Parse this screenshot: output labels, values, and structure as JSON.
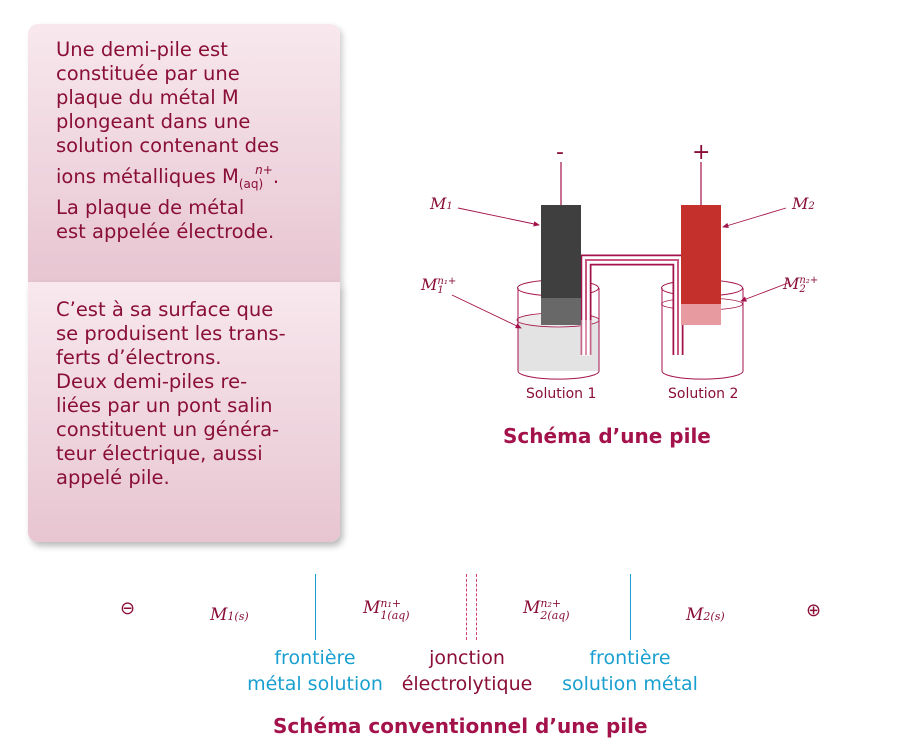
{
  "card_top": {
    "lines": [
      "Une demi-pile est",
      "constituée par une",
      "plaque du métal M",
      "plongeant dans une",
      "solution contenant des"
    ],
    "ions_prefix": "ions métalliques M",
    "ions_sup": "n+",
    "ions_sub": "(aq)",
    "ions_suffix": ".",
    "lines_after": [
      "La plaque de métal",
      "est appelée électrode."
    ]
  },
  "card_bottom": {
    "lines": [
      "C’est à sa surface que",
      "se produisent les trans-",
      "ferts d’électrons.",
      "Deux demi-piles re-",
      "liées par un pont salin",
      "constituent un généra-",
      "teur électrique, aussi",
      "appelé pile."
    ]
  },
  "cell_diagram": {
    "caption": "Schéma d’une pile",
    "minus_sign": "-",
    "plus_sign": "+",
    "m1": "M",
    "m1_sub": "1",
    "m2": "M",
    "m2_sub": "2",
    "ion1": "M",
    "ion1_sub": "1",
    "ion1_sup": "n₁+",
    "ion2": "M",
    "ion2_sub": "2",
    "ion2_sup": "n₂+",
    "solution1": "Solution 1",
    "solution2": "Solution 2",
    "colors": {
      "electrode1": "#3f3f3f",
      "electrode2": "#c4302b",
      "accent": "#a3124a"
    }
  },
  "conventional": {
    "caption": "Schéma conventionnel d’une pile",
    "minus": "⊖",
    "plus": "⊕",
    "m1": "M",
    "m1_sub": "1(s)",
    "ion1": "M",
    "ion1_sup": "n₁+",
    "ion1_sub": "1(aq)",
    "ion2": "M",
    "ion2_sup": "n₂+",
    "ion2_sub": "2(aq)",
    "m2": "M",
    "m2_sub": "2(s)",
    "frontier1": [
      "frontière",
      "métal solution"
    ],
    "junction": [
      "jonction",
      "électrolytique"
    ],
    "frontier2": [
      "frontière",
      "solution métal"
    ]
  }
}
